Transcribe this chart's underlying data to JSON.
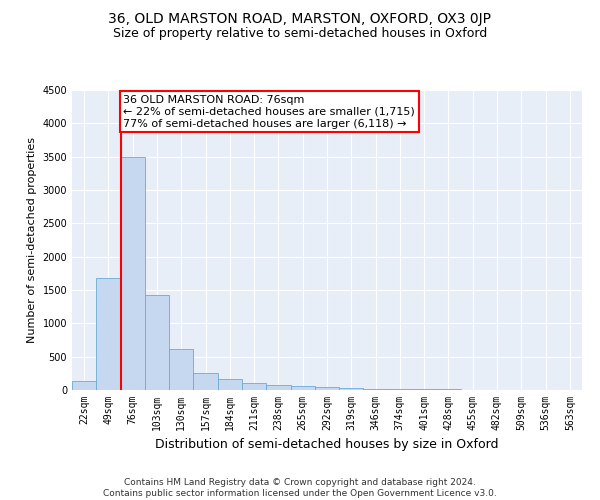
{
  "title": "36, OLD MARSTON ROAD, MARSTON, OXFORD, OX3 0JP",
  "subtitle": "Size of property relative to semi-detached houses in Oxford",
  "xlabel": "Distribution of semi-detached houses by size in Oxford",
  "ylabel": "Number of semi-detached properties",
  "categories": [
    "22sqm",
    "49sqm",
    "76sqm",
    "103sqm",
    "130sqm",
    "157sqm",
    "184sqm",
    "211sqm",
    "238sqm",
    "265sqm",
    "292sqm",
    "319sqm",
    "346sqm",
    "374sqm",
    "401sqm",
    "428sqm",
    "455sqm",
    "482sqm",
    "509sqm",
    "536sqm",
    "563sqm"
  ],
  "values": [
    130,
    1680,
    3500,
    1430,
    620,
    250,
    160,
    105,
    80,
    60,
    40,
    30,
    20,
    15,
    10,
    8,
    5,
    5,
    3,
    2,
    2
  ],
  "bar_color": "#c5d8f0",
  "bar_edge_color": "#6aaad4",
  "highlight_line_index": 2,
  "annotation_line1": "36 OLD MARSTON ROAD: 76sqm",
  "annotation_line2": "← 22% of semi-detached houses are smaller (1,715)",
  "annotation_line3": "77% of semi-detached houses are larger (6,118) →",
  "annotation_box_color": "white",
  "annotation_box_edge_color": "red",
  "vline_color": "red",
  "ylim": [
    0,
    4500
  ],
  "yticks": [
    0,
    500,
    1000,
    1500,
    2000,
    2500,
    3000,
    3500,
    4000,
    4500
  ],
  "background_color": "#e8eef8",
  "grid_color": "white",
  "footer_text": "Contains HM Land Registry data © Crown copyright and database right 2024.\nContains public sector information licensed under the Open Government Licence v3.0.",
  "title_fontsize": 10,
  "subtitle_fontsize": 9,
  "xlabel_fontsize": 9,
  "ylabel_fontsize": 8,
  "tick_fontsize": 7,
  "annotation_fontsize": 8,
  "footer_fontsize": 6.5
}
